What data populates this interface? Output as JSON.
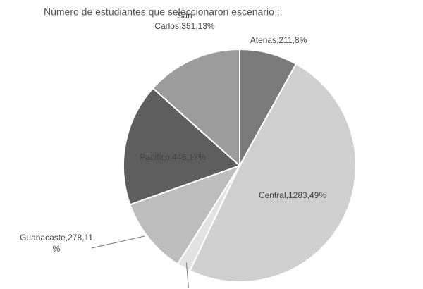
{
  "chart_data": {
    "type": "pie",
    "title": "Número de estudiantes que seleccionaron escenario :",
    "categories": [
      "Atenas",
      "Central",
      null,
      "Guanacaste",
      "Pacífico",
      "San Carlos"
    ],
    "values": [
      211,
      1283,
      50,
      278,
      446,
      351
    ],
    "value_labels": [
      [
        "Atenas,211,8%"
      ],
      [
        "Central,1283,49%"
      ],
      null,
      [
        "Guanacaste,278,11",
        "%"
      ],
      [
        "Pacífico,446,17%"
      ],
      [
        "San",
        "Carlos,351,13%"
      ]
    ],
    "colors": [
      "#7a7a7a",
      "#cfcfcf",
      "#e2e2e2",
      "#bdbdbd",
      "#5e5e5e",
      "#9c9c9c"
    ]
  }
}
